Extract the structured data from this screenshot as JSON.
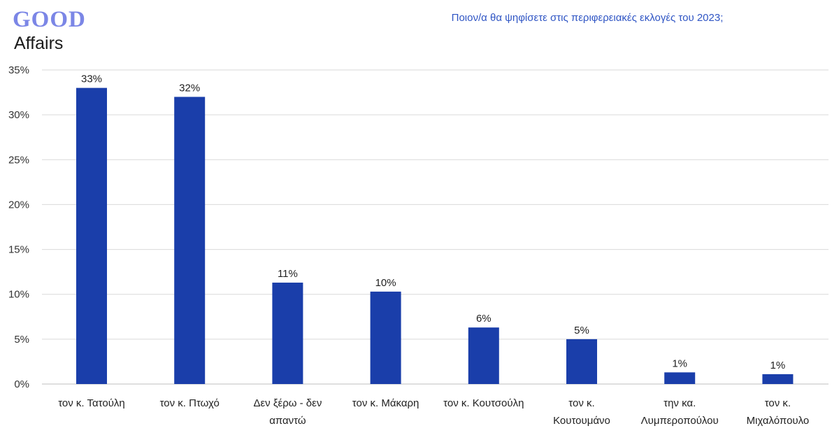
{
  "logo": {
    "line1": "GOOD",
    "line2": "Affairs"
  },
  "colors": {
    "bar": "#1a3eaa",
    "title": "#2f55c4",
    "grid": "#d9d9d9",
    "logo": "#7b86e6"
  },
  "chart_data": {
    "type": "bar",
    "title": "Ποιον/α  θα ψηφίσετε στις περιφερειακές εκλογές του 2023;",
    "xlabel": "",
    "ylabel": "",
    "ylim": [
      0,
      35
    ],
    "yticks": [
      "0%",
      "5%",
      "10%",
      "15%",
      "20%",
      "25%",
      "30%",
      "35%"
    ],
    "ytick_values": [
      0,
      5,
      10,
      15,
      20,
      25,
      30,
      35
    ],
    "grid": true,
    "categories": [
      [
        "τον κ. Τατούλη"
      ],
      [
        "τον κ. Πτωχό"
      ],
      [
        "Δεν ξέρω - δεν",
        "απαντώ"
      ],
      [
        "τον κ. Μάκαρη"
      ],
      [
        "τον κ. Κουτσούλη"
      ],
      [
        "τον κ.",
        "Κουτουμάνο"
      ],
      [
        "την κα.",
        "Λυμπεροπούλου"
      ],
      [
        "τον κ.",
        "Μιχαλόπουλο"
      ]
    ],
    "values": [
      33,
      32,
      11.3,
      10.3,
      6.3,
      5,
      1.3,
      1.1
    ],
    "data_labels": [
      "33%",
      "32%",
      "11%",
      "10%",
      "6%",
      "5%",
      "1%",
      "1%"
    ]
  }
}
